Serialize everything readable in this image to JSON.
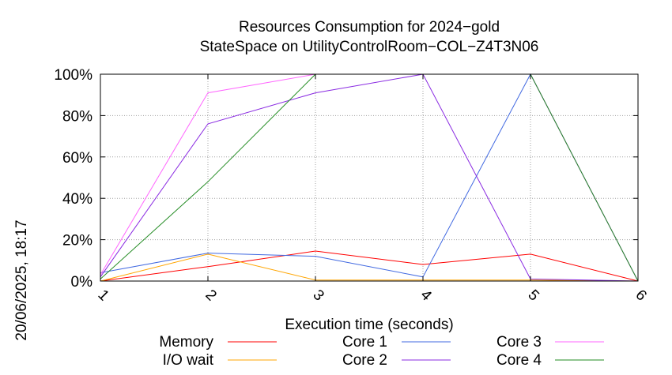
{
  "timestamp": "20/06/2025, 18:17",
  "chart_data": {
    "type": "line",
    "title": [
      "Resources Consumption for 2024−gold",
      "StateSpace on UtilityControlRoom−COL−Z4T3N06"
    ],
    "xlabel": "Execution time (seconds)",
    "ylabel": "",
    "x": [
      1,
      2,
      3,
      4,
      5,
      6
    ],
    "x_tick_labels": [
      "1",
      "2",
      "3",
      "4",
      "5",
      "6"
    ],
    "xlim": [
      1,
      6
    ],
    "ylim": [
      0,
      100
    ],
    "y_ticks": [
      0,
      20,
      40,
      60,
      80,
      100
    ],
    "y_tick_labels": [
      "0%",
      "20%",
      "40%",
      "60%",
      "80%",
      "100%"
    ],
    "grid": true,
    "legend_position": "bottom",
    "series": [
      {
        "name": "Memory",
        "color": "#ff0000",
        "values": [
          0,
          7,
          14.5,
          8,
          13,
          0
        ]
      },
      {
        "name": "I/O wait",
        "color": "#ffa500",
        "values": [
          0,
          13,
          0.5,
          0.5,
          0.5,
          0
        ]
      },
      {
        "name": "Core 1",
        "color": "#4169e1",
        "values": [
          4,
          13.5,
          12,
          2,
          100,
          0
        ]
      },
      {
        "name": "Core 2",
        "color": "#8a2be2",
        "values": [
          2,
          76,
          91,
          100,
          1,
          0
        ]
      },
      {
        "name": "Core 3",
        "color": "#ff66ff",
        "values": [
          3,
          91,
          100,
          100,
          100,
          0
        ]
      },
      {
        "name": "Core 4",
        "color": "#228b22",
        "values": [
          1,
          48,
          100,
          100,
          100,
          0
        ]
      }
    ]
  }
}
